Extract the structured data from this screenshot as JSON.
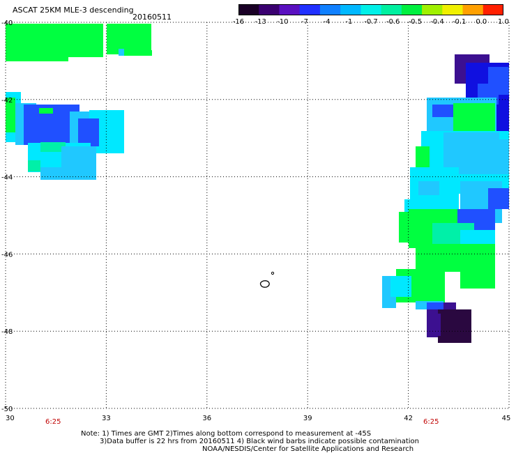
{
  "header": {
    "title": "ASCAT 25KM MLE-3 descending",
    "date": "20160511"
  },
  "colorbar": {
    "labels": [
      "-16",
      "-13",
      "-10",
      "-7",
      "-4",
      "-1",
      "-0.7",
      "-0.6",
      "-0.5",
      "-0.4",
      "-0.1",
      "0.0",
      "1.0"
    ],
    "colors": [
      "#1a0026",
      "#3a0070",
      "#5a10c0",
      "#2030ff",
      "#1080ff",
      "#00b8ff",
      "#00f0e8",
      "#00f0a0",
      "#00f040",
      "#a0f000",
      "#f0f000",
      "#ffa000",
      "#ff2000"
    ]
  },
  "axes": {
    "x_ticks": [
      "30",
      "33",
      "36",
      "39",
      "42",
      "45"
    ],
    "y_ticks": [
      "-40",
      "-42",
      "-44",
      "-46",
      "-48",
      "-50"
    ],
    "x_range": [
      30,
      45
    ],
    "y_range": [
      -50,
      -40
    ]
  },
  "time_labels": [
    "6:25",
    "6:25"
  ],
  "notes": {
    "line1": "Note: 1) Times are GMT 2)Times along bottom correspond to measurement at -45S",
    "line2": "3)Data buffer is 22 hrs from 20160511 4) Black wind barbs indicate possible contamination",
    "line3": "NOAA/NESDIS/Center for Satellite Applications and Research"
  },
  "palette": {
    "green": "#00ff40",
    "mint": "#00f0a8",
    "cyan": "#00e8ff",
    "lightblue": "#20c8ff",
    "blue": "#2050ff",
    "deepblue": "#1010e0",
    "purple": "#3c1090",
    "darkpurple": "#2a0840"
  }
}
